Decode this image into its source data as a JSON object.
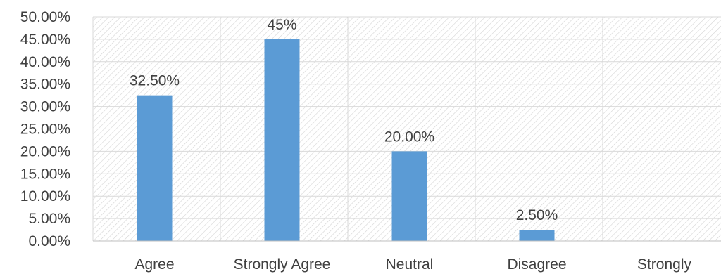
{
  "chart_data": {
    "type": "bar",
    "categories": [
      "Agree",
      "Strongly Agree",
      "Neutral",
      "Disagree",
      "Strongly"
    ],
    "values": [
      32.5,
      45,
      20,
      2.5,
      0
    ],
    "data_labels": [
      "32.50%",
      "45%",
      "20.00%",
      "2.50%",
      ""
    ],
    "yticks": [
      "0.00%",
      "5.00%",
      "10.00%",
      "15.00%",
      "20.00%",
      "25.00%",
      "30.00%",
      "35.00%",
      "40.00%",
      "45.00%",
      "50.00%"
    ],
    "ylim": [
      0,
      50
    ],
    "title": "",
    "xlabel": "",
    "ylabel": "",
    "grid": true,
    "legend": "none",
    "bar_color": "#5b9bd5",
    "background_pattern": "diagonal-hatch"
  }
}
